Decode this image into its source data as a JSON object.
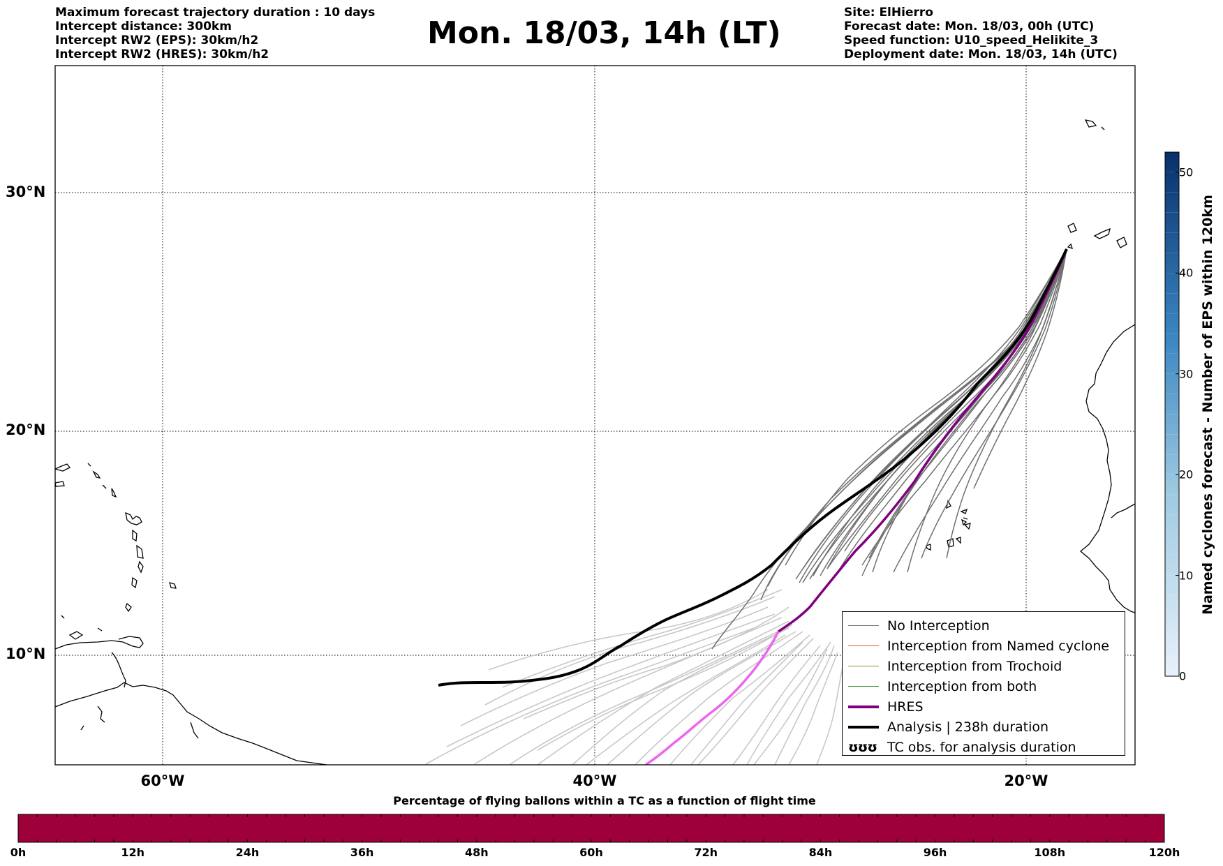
{
  "header": {
    "left_lines": [
      "Maximum forecast trajectory duration : 10 days",
      "Intercept distance: 300km",
      "Intercept RW2 (EPS):  30km/h2",
      "Intercept RW2 (HRES): 30km/h2"
    ],
    "title": "Mon. 18/03, 14h (LT)",
    "right_lines": [
      "Site: ElHierro",
      "Forecast date: Mon. 18/03, 00h (UTC)",
      "Speed function: U10_speed_Helikite_3",
      "Deployment date: Mon. 18/03, 14h (UTC)"
    ]
  },
  "map": {
    "lat_labels": [
      "30°N",
      "20°N",
      "10°N"
    ],
    "lon_labels": [
      "60°W",
      "40°W",
      "20°W"
    ],
    "grid": "dotted",
    "colors": {
      "no_interception": "#707070",
      "faded_tracks": "#c8c8c8",
      "named_cyclone": "#e8542a",
      "trochoid": "#8a8a3a",
      "both": "#2e8b2e",
      "hres": "#800080",
      "hres_faded": "#ee66ee",
      "analysis": "#000000"
    }
  },
  "legend": {
    "items": [
      {
        "label": "No Interception",
        "color": "#707070",
        "style": "thin"
      },
      {
        "label": "Interception from Named cyclone",
        "color": "#e8542a",
        "style": "thin"
      },
      {
        "label": "Interception from Trochoid",
        "color": "#8a8a3a",
        "style": "thin"
      },
      {
        "label": "Interception from both",
        "color": "#2e8b2e",
        "style": "thin"
      },
      {
        "label": "HRES",
        "color": "#800080",
        "style": "thick"
      },
      {
        "label": "Analysis | 238h duration",
        "color": "#000000",
        "style": "thick"
      },
      {
        "label": "TC obs. for analysis duration",
        "symbol": "ʊʊʊ",
        "style": "symbol"
      }
    ]
  },
  "colorbar": {
    "title": "Named cyclones forecast - Number of EPS within 120km",
    "ticks": [
      "0",
      "10",
      "20",
      "30",
      "40",
      "50"
    ],
    "range": [
      0,
      52
    ],
    "colors": [
      "#e8f1fb",
      "#08306b"
    ]
  },
  "flight_time_bar": {
    "title": "Percentage of flying ballons within a TC as a function of flight time",
    "ticks": [
      "0h",
      "12h",
      "24h",
      "36h",
      "48h",
      "60h",
      "72h",
      "84h",
      "96h",
      "108h",
      "120h"
    ],
    "fill_color": "#9e003a"
  }
}
